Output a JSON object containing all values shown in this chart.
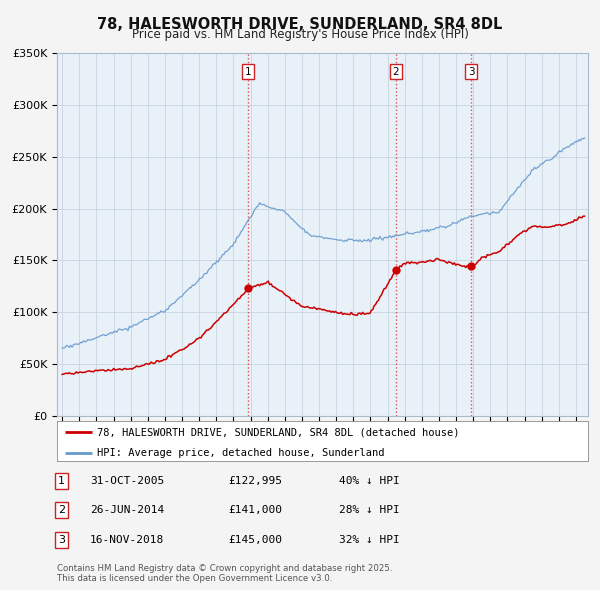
{
  "title": "78, HALESWORTH DRIVE, SUNDERLAND, SR4 8DL",
  "subtitle": "Price paid vs. HM Land Registry's House Price Index (HPI)",
  "background_color": "#f0f4f8",
  "plot_bg_color": "#e8f0f8",
  "ylabel": "",
  "ylim": [
    0,
    350000
  ],
  "yticks": [
    0,
    50000,
    100000,
    150000,
    200000,
    250000,
    300000,
    350000
  ],
  "ytick_labels": [
    "£0",
    "£50K",
    "£100K",
    "£150K",
    "£200K",
    "£250K",
    "£300K",
    "£350K"
  ],
  "sale_dates_dec": [
    2005.833,
    2014.493,
    2018.877
  ],
  "sale_prices": [
    122995,
    141000,
    145000
  ],
  "sale_labels": [
    "1",
    "2",
    "3"
  ],
  "vline_color": "#dd3333",
  "hpi_line_color": "#6699cc",
  "price_line_color": "#cc0000",
  "legend_label_price": "78, HALESWORTH DRIVE, SUNDERLAND, SR4 8DL (detached house)",
  "legend_label_hpi": "HPI: Average price, detached house, Sunderland",
  "table_data": [
    [
      "1",
      "31-OCT-2005",
      "£122,995",
      "40% ↓ HPI"
    ],
    [
      "2",
      "26-JUN-2014",
      "£141,000",
      "28% ↓ HPI"
    ],
    [
      "3",
      "16-NOV-2018",
      "£145,000",
      "32% ↓ HPI"
    ]
  ],
  "footer": "Contains HM Land Registry data © Crown copyright and database right 2025.\nThis data is licensed under the Open Government Licence v3.0.",
  "start_year": 1995,
  "end_year": 2025
}
